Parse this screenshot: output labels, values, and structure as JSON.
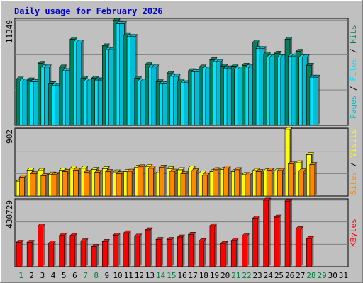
{
  "title": "Daily usage for February 2026",
  "colors": {
    "title": "#0000cc",
    "hits": "#00805c",
    "files": "#00e4ff",
    "pages": "#00bcd4",
    "visits": "#ffff00",
    "sites": "#ff8800",
    "kbytes": "#ff0000",
    "axis_black": "#000000",
    "axis_green": "#008040",
    "panel": "#c0c0c0"
  },
  "chart_data": [
    {
      "type": "bar",
      "name": "hits-files-pages",
      "y_max_label": "11349",
      "ylim": [
        0,
        11349
      ],
      "legend": [
        "Pages",
        "Files",
        "Hits"
      ],
      "categories": [
        1,
        2,
        3,
        4,
        5,
        6,
        7,
        8,
        9,
        10,
        11,
        12,
        13,
        14,
        15,
        16,
        17,
        18,
        19,
        20,
        21,
        22,
        23,
        24,
        25,
        26,
        27,
        28,
        29,
        30,
        31
      ],
      "series": [
        {
          "name": "Hits",
          "values": [
            5000,
            4900,
            6700,
            4500,
            6300,
            9300,
            5100,
            5100,
            8600,
            11349,
            9800,
            5100,
            6600,
            4700,
            5600,
            4800,
            5900,
            6300,
            7100,
            6400,
            6400,
            6500,
            9000,
            7700,
            7800,
            9300,
            8000,
            6500,
            null,
            null,
            null
          ]
        },
        {
          "name": "Files",
          "values": [
            4800,
            4700,
            6300,
            4300,
            5900,
            9000,
            4800,
            4900,
            8200,
            11000,
            9600,
            4800,
            6300,
            4500,
            5300,
            4600,
            5800,
            6100,
            6900,
            6200,
            6100,
            6300,
            8300,
            7400,
            7400,
            7500,
            7400,
            5200,
            null,
            null,
            null
          ]
        },
        {
          "name": "Pages",
          "values": [
            4800,
            4700,
            6300,
            4300,
            5900,
            9000,
            4800,
            4900,
            8200,
            11000,
            9600,
            4800,
            6300,
            4500,
            5300,
            4600,
            5800,
            6100,
            6900,
            6200,
            6100,
            6300,
            8300,
            7400,
            7400,
            7500,
            7400,
            5200,
            null,
            null,
            null
          ]
        }
      ]
    },
    {
      "type": "bar",
      "name": "visits-sites",
      "y_max_label": "902",
      "ylim": [
        0,
        902
      ],
      "legend": [
        "Sites",
        "Visits"
      ],
      "categories": [
        1,
        2,
        3,
        4,
        5,
        6,
        7,
        8,
        9,
        10,
        11,
        12,
        13,
        14,
        15,
        16,
        17,
        18,
        19,
        20,
        21,
        22,
        23,
        24,
        25,
        26,
        27,
        28,
        29,
        30,
        31
      ],
      "series": [
        {
          "name": "Visits",
          "values": [
            200,
            350,
            345,
            295,
            350,
            375,
            375,
            360,
            370,
            325,
            330,
            390,
            400,
            315,
            370,
            355,
            380,
            310,
            330,
            360,
            330,
            290,
            345,
            340,
            340,
            902,
            450,
            560,
            null,
            null,
            null
          ]
        },
        {
          "name": "Sites",
          "values": [
            255,
            300,
            275,
            290,
            330,
            350,
            320,
            320,
            330,
            300,
            335,
            395,
            375,
            390,
            335,
            300,
            340,
            280,
            355,
            380,
            355,
            285,
            330,
            350,
            345,
            435,
            340,
            425,
            null,
            null,
            null
          ]
        }
      ]
    },
    {
      "type": "bar",
      "name": "kbytes",
      "y_max_label": "430729",
      "ylim": [
        0,
        430729
      ],
      "legend": [
        "KBytes"
      ],
      "categories": [
        1,
        2,
        3,
        4,
        5,
        6,
        7,
        8,
        9,
        10,
        11,
        12,
        13,
        14,
        15,
        16,
        17,
        18,
        19,
        20,
        21,
        22,
        23,
        24,
        25,
        26,
        27,
        28,
        29,
        30,
        31
      ],
      "series": [
        {
          "name": "KBytes",
          "values": [
            158000,
            158000,
            263000,
            153000,
            202000,
            201000,
            167000,
            130000,
            163000,
            203000,
            219000,
            198000,
            238000,
            176000,
            176000,
            192000,
            209000,
            168000,
            265000,
            150000,
            170000,
            199000,
            314000,
            430729,
            320000,
            425000,
            245000,
            182000,
            null,
            null,
            null
          ]
        }
      ]
    }
  ],
  "x_labels": [
    "1",
    "2",
    "3",
    "4",
    "5",
    "6",
    "7",
    "8",
    "9",
    "10",
    "11",
    "12",
    "13",
    "14",
    "15",
    "16",
    "17",
    "18",
    "19",
    "20",
    "21",
    "22",
    "23",
    "24",
    "25",
    "26",
    "27",
    "28",
    "29",
    "30",
    "31"
  ],
  "x_label_green": [
    "1",
    "7",
    "8",
    "14",
    "15",
    "21",
    "22",
    "28",
    "29"
  ]
}
